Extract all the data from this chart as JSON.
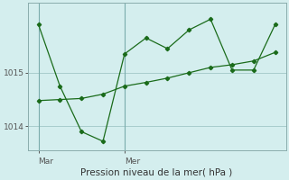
{
  "title": "Pression niveau de la mer( hPa )",
  "background_color": "#d4eeee",
  "grid_color": "#a8cccc",
  "line_color": "#1a6b1a",
  "marker_color": "#1a6b1a",
  "ylim": [
    1013.55,
    1016.3
  ],
  "yticks": [
    1014,
    1015
  ],
  "vlines": [
    0,
    4
  ],
  "x_day_labels": [
    {
      "label": "Mar",
      "x": 0
    },
    {
      "label": "Mer",
      "x": 4
    }
  ],
  "series1_x": [
    0,
    1,
    2,
    3,
    4,
    5,
    6,
    7,
    8,
    9,
    10,
    11
  ],
  "series1_y": [
    1015.9,
    1014.75,
    1013.9,
    1013.72,
    1015.35,
    1015.65,
    1015.45,
    1015.8,
    1016.0,
    1015.05,
    1015.05,
    1015.9
  ],
  "series2_x": [
    0,
    1,
    2,
    3,
    4,
    5,
    6,
    7,
    8,
    9,
    10,
    11
  ],
  "series2_y": [
    1014.48,
    1014.5,
    1014.52,
    1014.6,
    1014.75,
    1014.82,
    1014.9,
    1015.0,
    1015.1,
    1015.15,
    1015.22,
    1015.38
  ],
  "xlim": [
    -0.5,
    11.5
  ],
  "figwidth": 3.2,
  "figheight": 2.0,
  "dpi": 100
}
